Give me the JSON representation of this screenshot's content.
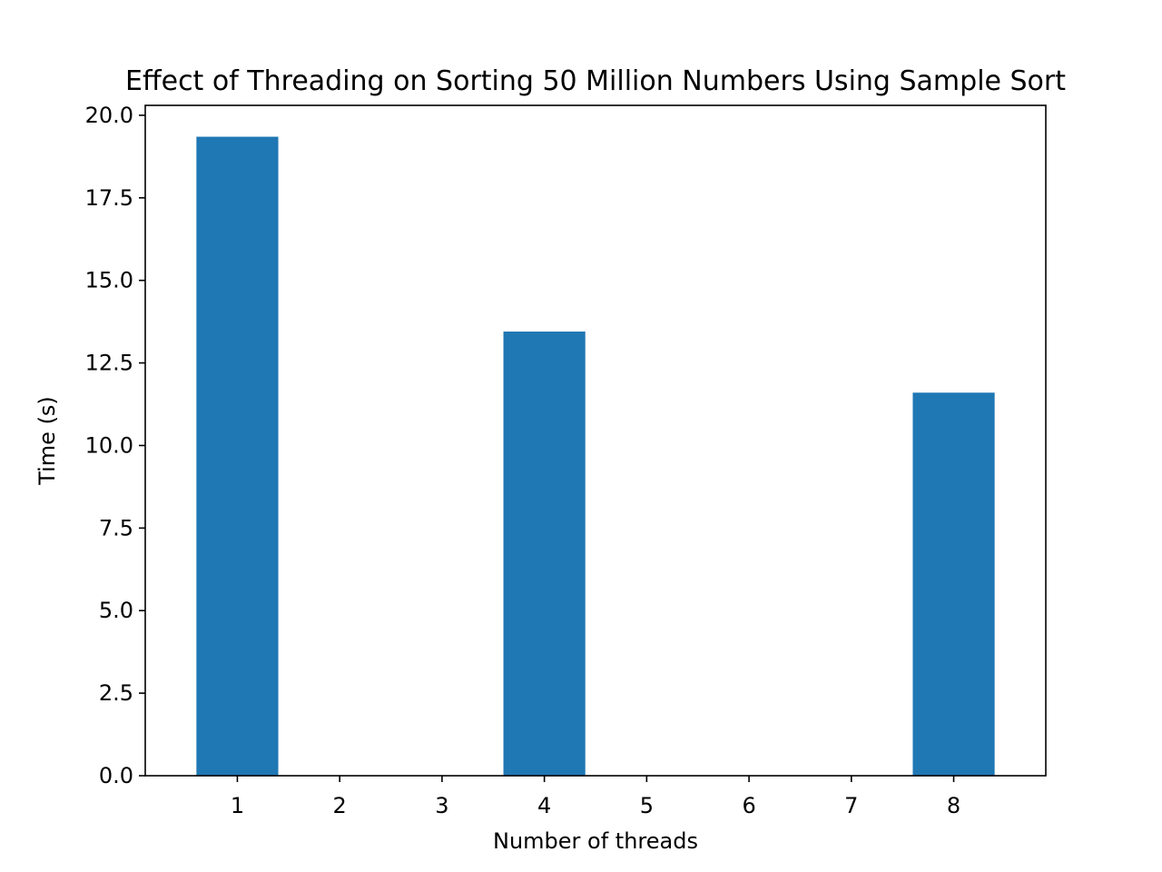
{
  "chart_data": {
    "type": "bar",
    "title": "Effect of Threading on Sorting 50 Million Numbers Using Sample Sort",
    "xlabel": "Number of threads",
    "ylabel": "Time (s)",
    "x": [
      1,
      4,
      8
    ],
    "values": [
      19.35,
      13.45,
      11.6
    ],
    "xticks": [
      "1",
      "2",
      "3",
      "4",
      "5",
      "6",
      "7",
      "8"
    ],
    "yticks": [
      "0.0",
      "2.5",
      "5.0",
      "7.5",
      "10.0",
      "12.5",
      "15.0",
      "17.5",
      "20.0"
    ],
    "xlim": [
      0.1,
      8.9
    ],
    "ylim": [
      0,
      20.3
    ],
    "bar_width": 0.8,
    "bar_color": "#1f77b4",
    "grid": false,
    "legend": "none"
  }
}
